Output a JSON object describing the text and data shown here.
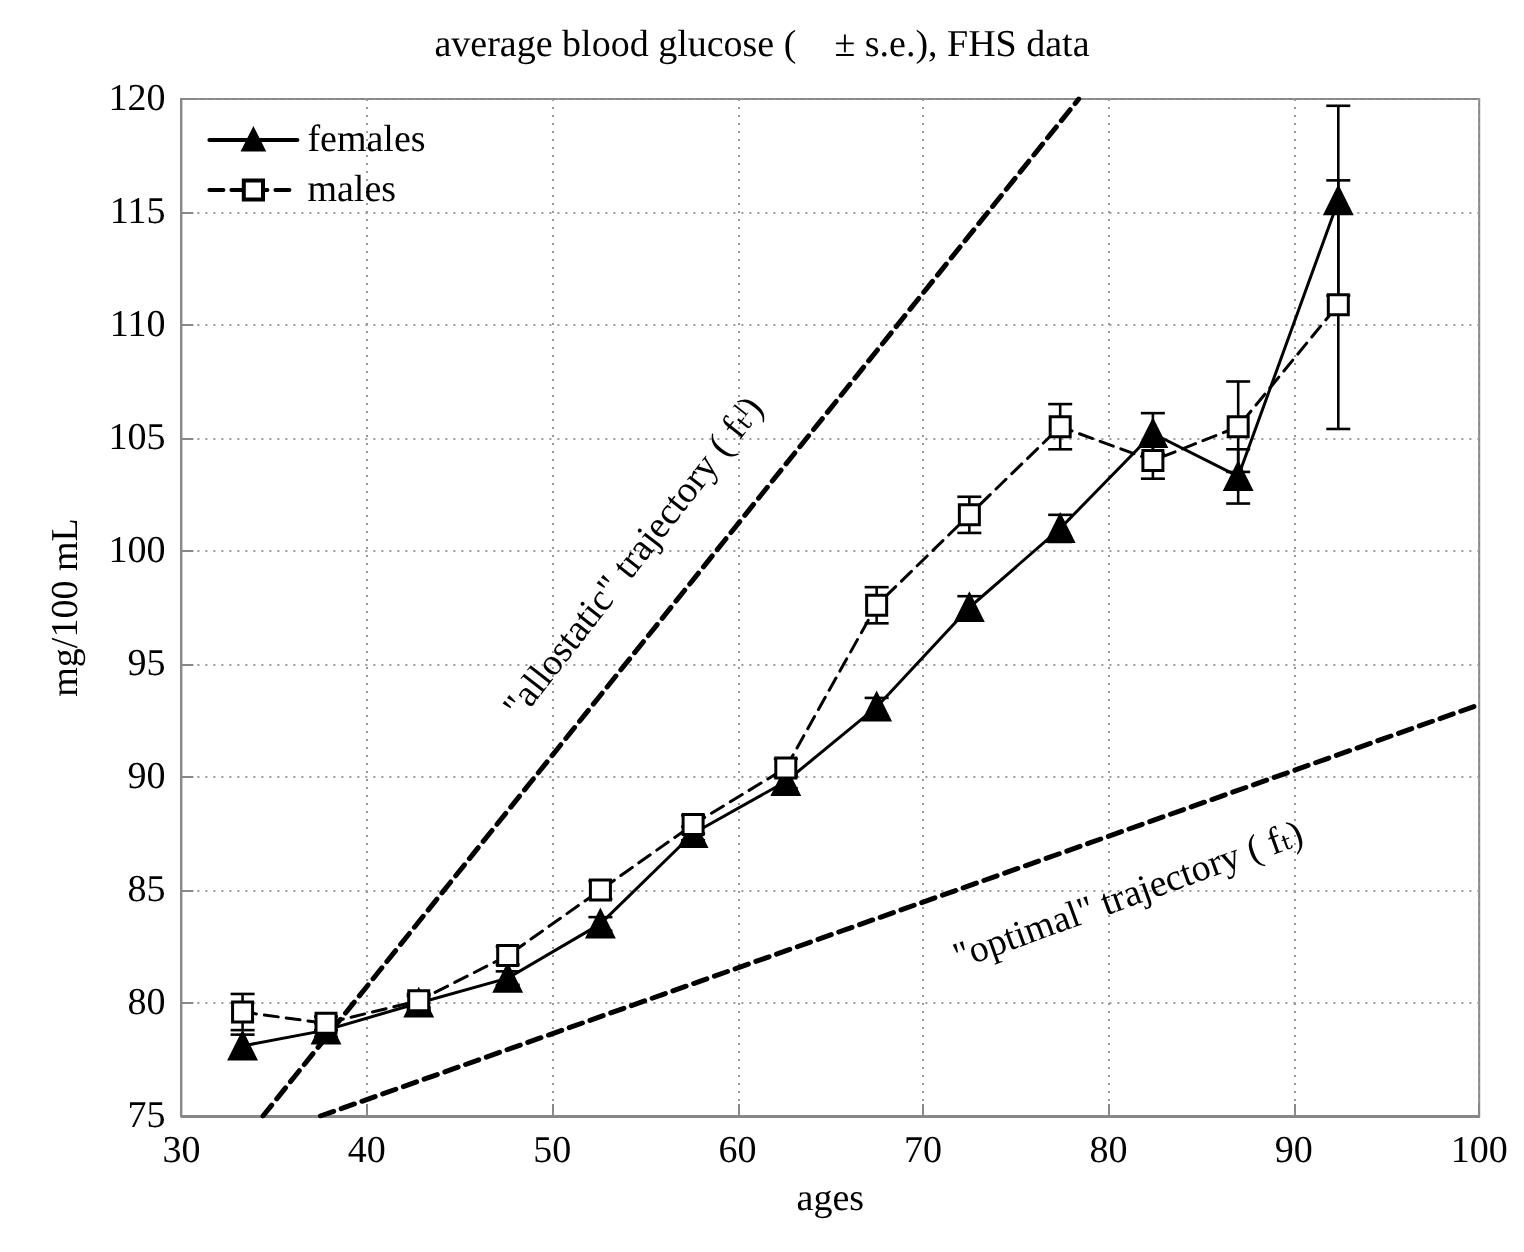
{
  "chart_data": {
    "type": "line",
    "title": "average blood glucose (    ± s.e.), FHS data",
    "xlabel": "ages",
    "ylabel": "mg/100 mL",
    "x": [
      33.3,
      37.8,
      42.8,
      47.6,
      52.6,
      57.6,
      62.6,
      67.5,
      72.5,
      77.4,
      82.4,
      87,
      92.4
    ],
    "series": [
      {
        "name": "females",
        "color": "#000000",
        "marker": "triangle",
        "line_style": "solid",
        "values": [
          78.1,
          78.8,
          80.0,
          81.1,
          83.5,
          87.5,
          89.8,
          93.1,
          97.5,
          101.0,
          105.2,
          103.3,
          115.5
        ],
        "errors": [
          0.5,
          0.3,
          0.3,
          0.3,
          0.3,
          0.3,
          0.3,
          0.4,
          0.5,
          0.6,
          0.9,
          1.2,
          4.2
        ]
      },
      {
        "name": "males",
        "color": "#000000",
        "marker": "square",
        "line_style": "dashed",
        "values": [
          79.6,
          79.1,
          80.1,
          82.1,
          85.0,
          87.9,
          90.4,
          97.6,
          101.6,
          105.5,
          104.0,
          105.5,
          110.9
        ],
        "errors": [
          0.8,
          0.3,
          0.3,
          0.4,
          0.4,
          0.4,
          0.4,
          0.8,
          0.8,
          1.0,
          0.8,
          2.0,
          5.5
        ]
      },
      {
        "type": "line",
        "color": "#000000",
        "marker": "none",
        "line_style": "dashed",
        "x": [
          34.4,
          78.4
        ],
        "values": [
          75,
          120
        ]
      },
      {
        "type": "line",
        "color": "#000000",
        "marker": "none",
        "line_style": "dashed",
        "x": [
          37.5,
          100
        ],
        "values": [
          75,
          93.2
        ]
      }
    ],
    "annotations": [
      {
        "text": "\"allostatic\" trajectory ( fₜˡ)",
        "x": 57,
        "y": 98.1
      },
      {
        "text": "\"optimal\" trajectory ( fₜ)",
        "x": 80,
        "y": 87.4
      }
    ],
    "xlim": [
      30,
      100
    ],
    "xticks": [
      30,
      40,
      50,
      60,
      70,
      80,
      90,
      100
    ],
    "ylim": [
      75,
      120
    ],
    "yticks": [
      75,
      80,
      85,
      90,
      95,
      100,
      105,
      110,
      115,
      120
    ],
    "grid": true,
    "legend": "top left"
  }
}
